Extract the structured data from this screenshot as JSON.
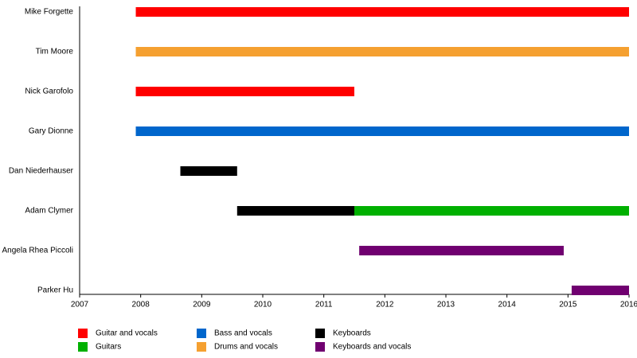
{
  "chart_data": {
    "type": "timeline",
    "categories": [
      "Mike Forgette",
      "Tim Moore",
      "Nick Garofolo",
      "Gary Dionne",
      "Dan Niederhauser",
      "Adam Clymer",
      "Angela Rhea Piccoli",
      "Parker Hu"
    ],
    "series": [
      {
        "name": "Guitar and vocals",
        "color": "#ff0000",
        "values": [
          [
            2007.92,
            2016
          ],
          null,
          [
            2007.92,
            2011.5
          ],
          null,
          null,
          null,
          null,
          null
        ]
      },
      {
        "name": "Guitars",
        "color": "#00b000",
        "values": [
          null,
          null,
          null,
          null,
          null,
          [
            2011.5,
            2016
          ],
          null,
          null
        ]
      },
      {
        "name": "Bass and vocals",
        "color": "#0066cc",
        "values": [
          null,
          null,
          null,
          [
            2007.92,
            2016
          ],
          null,
          null,
          null,
          null
        ]
      },
      {
        "name": "Drums and vocals",
        "color": "#f5a030",
        "values": [
          null,
          [
            2007.92,
            2016
          ],
          null,
          null,
          null,
          null,
          null,
          null
        ]
      },
      {
        "name": "Keyboards",
        "color": "#000000",
        "values": [
          null,
          null,
          null,
          null,
          [
            2008.65,
            2009.58
          ],
          [
            2009.58,
            2011.5
          ],
          null,
          null
        ]
      },
      {
        "name": "Keyboards and vocals",
        "color": "#700070",
        "values": [
          null,
          null,
          null,
          null,
          null,
          null,
          [
            2011.58,
            2014.93
          ],
          [
            2015.06,
            2016
          ]
        ]
      }
    ],
    "xlim": [
      2007,
      2016
    ],
    "xticks": [
      2007,
      2008,
      2009,
      2010,
      2011,
      2012,
      2013,
      2014,
      2015,
      2016
    ]
  }
}
